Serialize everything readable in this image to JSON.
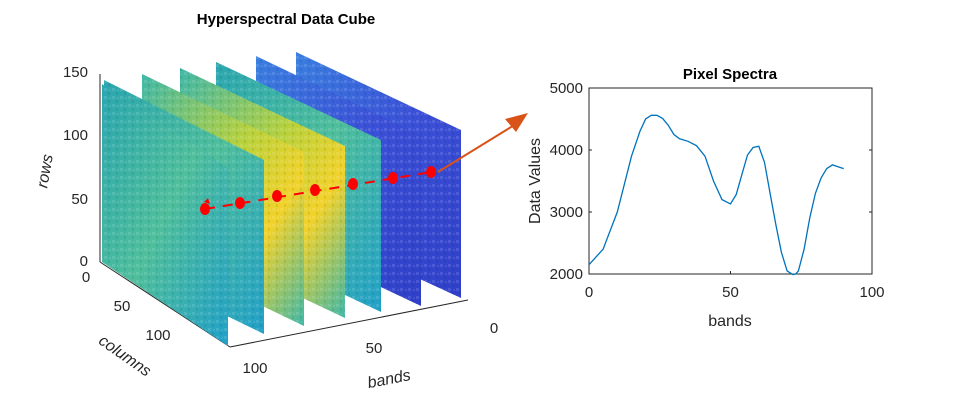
{
  "cube": {
    "title": "Hyperspectral Data Cube",
    "rows_label": "rows",
    "columns_label": "columns",
    "bands_label": "bands",
    "rows_ticks": [
      "0",
      "50",
      "100",
      "150"
    ],
    "columns_ticks": [
      "0",
      "50",
      "100"
    ],
    "bands_ticks": [
      "0",
      "50",
      "100"
    ]
  },
  "colors": {
    "line": "#0072BD",
    "marker": "#FF0000",
    "arrow": "#D95319",
    "axis": "#262626"
  },
  "chart_data": {
    "type": "line",
    "title": "Pixel Spectra",
    "xlabel": "bands",
    "ylabel": "Data Values",
    "xlim": [
      0,
      100
    ],
    "ylim": [
      2000,
      5000
    ],
    "xticks": [
      "0",
      "50",
      "100"
    ],
    "yticks": [
      "2000",
      "3000",
      "4000",
      "5000"
    ],
    "grid": false,
    "series": [
      {
        "x": [
          0,
          5,
          10,
          15,
          18,
          20,
          22,
          24,
          26,
          28,
          30,
          32,
          35,
          38,
          41,
          44,
          47,
          50,
          52,
          54,
          56,
          58,
          60,
          62,
          64,
          66,
          68,
          70,
          72,
          73,
          74,
          76,
          78,
          80,
          82,
          84,
          86,
          88,
          90
        ],
        "y": [
          2150,
          2400,
          3000,
          3900,
          4300,
          4500,
          4560,
          4560,
          4510,
          4400,
          4250,
          4180,
          4140,
          4070,
          3900,
          3500,
          3200,
          3130,
          3280,
          3600,
          3920,
          4040,
          4060,
          3800,
          3300,
          2800,
          2350,
          2050,
          1990,
          2000,
          2050,
          2400,
          2900,
          3300,
          3550,
          3700,
          3760,
          3730,
          3700
        ]
      }
    ]
  }
}
